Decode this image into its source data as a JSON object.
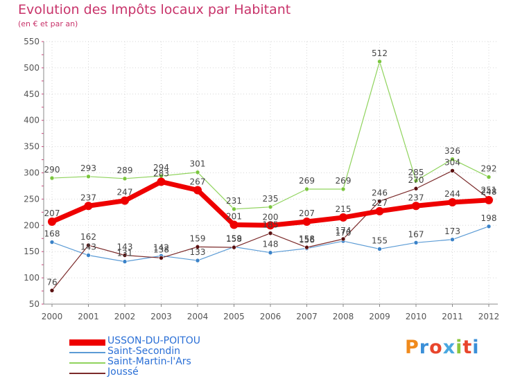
{
  "title": "Evolution des Impôts locaux par Habitant",
  "subtitle": "(en € et par an)",
  "logo": {
    "text": "Proxiti",
    "colors": [
      "#f08a1c",
      "#3a8fd8",
      "#e8452c",
      "#4aa8e0",
      "#8cc63e",
      "#e8452c",
      "#3a8fd8"
    ]
  },
  "chart_data": {
    "type": "line",
    "x": [
      "2000",
      "2001",
      "2002",
      "2003",
      "2004",
      "2005",
      "2006",
      "2007",
      "2008",
      "2009",
      "2010",
      "2011",
      "2012"
    ],
    "ylim": [
      50,
      550
    ],
    "yticks": [
      50,
      100,
      150,
      200,
      250,
      300,
      350,
      400,
      450,
      500,
      550
    ],
    "grid": true,
    "legend_position": "bottom-left",
    "series": [
      {
        "name": "USSON-DU-POITOU",
        "color": "#ee0000",
        "values": [
          207,
          237,
          247,
          283,
          267,
          201,
          200,
          207,
          215,
          227,
          237,
          244,
          248
        ],
        "labels": [
          "207",
          "237",
          "247",
          "283",
          "267",
          "201",
          "200",
          "207",
          "215",
          "227",
          "237",
          "244",
          "248"
        ]
      },
      {
        "name": "Saint-Secondin",
        "color": "#5b9bd5",
        "values": [
          168,
          143,
          131,
          142,
          133,
          159,
          148,
          156,
          170,
          155,
          167,
          173,
          198
        ],
        "labels": [
          "168",
          "143",
          "131",
          "142",
          "133",
          "159",
          "148",
          "156",
          "170",
          "155",
          "167",
          "173",
          "198"
        ]
      },
      {
        "name": "Saint-Martin-l'Ars",
        "color": "#8fd35c",
        "values": [
          290,
          293,
          289,
          294,
          301,
          231,
          235,
          269,
          269,
          512,
          285,
          326,
          292
        ],
        "labels": [
          "290",
          "293",
          "289",
          "294",
          "301",
          "231",
          "235",
          "269",
          "269",
          "512",
          "285",
          "326",
          "292"
        ]
      },
      {
        "name": "Joussé",
        "color": "#7b2a2a",
        "values": [
          76,
          162,
          143,
          138,
          159,
          158,
          185,
          158,
          174,
          246,
          270,
          304,
          251
        ],
        "labels": [
          "76",
          "162",
          "143",
          "138",
          "159",
          "158",
          "185",
          "158",
          "174",
          "246",
          "270",
          "304",
          "251"
        ]
      }
    ]
  }
}
